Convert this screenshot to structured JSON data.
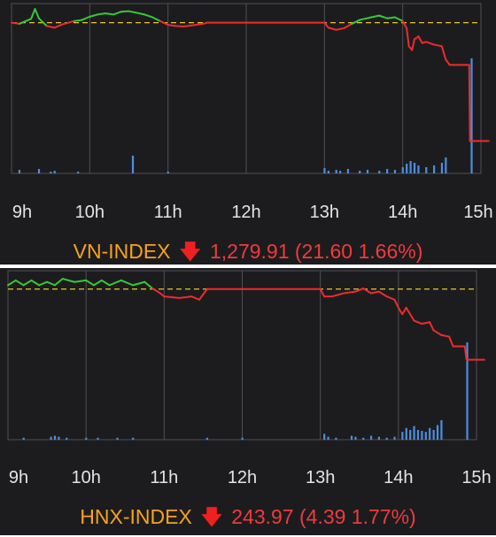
{
  "colors": {
    "background": "#1c1c1f",
    "grid": "#505055",
    "reference_line": "#e8c530",
    "up": "#37c837",
    "down": "#ef2b2b",
    "volume": "#4b8fe0",
    "index_name": "#f7a21b",
    "index_value": "#ef3b3b"
  },
  "chart_data": [
    {
      "type": "line",
      "index_name": "VN-INDEX",
      "direction_icon": "arrow-down-icon",
      "summary": "1,279.91 (21.60 1.66%)",
      "x_ticks": [
        "9h",
        "10h",
        "11h",
        "12h",
        "13h",
        "14h",
        "15h"
      ],
      "reference": 1301.51,
      "ylim": [
        1274,
        1305
      ],
      "price": [
        [
          9.0,
          1301.5
        ],
        [
          9.1,
          1301.3
        ],
        [
          9.25,
          1302.2
        ],
        [
          9.3,
          1304.0
        ],
        [
          9.35,
          1302.3
        ],
        [
          9.45,
          1300.9
        ],
        [
          9.55,
          1300.6
        ],
        [
          9.65,
          1301.2
        ],
        [
          9.8,
          1301.8
        ],
        [
          9.9,
          1302.0
        ],
        [
          10.0,
          1302.6
        ],
        [
          10.1,
          1303.0
        ],
        [
          10.2,
          1303.2
        ],
        [
          10.3,
          1303.0
        ],
        [
          10.4,
          1303.5
        ],
        [
          10.5,
          1303.6
        ],
        [
          10.6,
          1303.3
        ],
        [
          10.7,
          1303.0
        ],
        [
          10.8,
          1302.5
        ],
        [
          10.9,
          1301.8
        ],
        [
          11.0,
          1301.1
        ],
        [
          11.1,
          1300.9
        ],
        [
          11.2,
          1300.8
        ],
        [
          11.3,
          1301.0
        ],
        [
          11.45,
          1301.3
        ],
        [
          11.5,
          1301.5
        ],
        [
          12.0,
          1301.5
        ],
        [
          13.0,
          1301.5
        ],
        [
          13.05,
          1300.6
        ],
        [
          13.15,
          1300.2
        ],
        [
          13.25,
          1300.5
        ],
        [
          13.35,
          1301.3
        ],
        [
          13.45,
          1302.0
        ],
        [
          13.6,
          1302.5
        ],
        [
          13.7,
          1302.8
        ],
        [
          13.8,
          1302.3
        ],
        [
          13.9,
          1302.5
        ],
        [
          14.0,
          1301.8
        ],
        [
          14.05,
          1300.5
        ],
        [
          14.08,
          1297.2
        ],
        [
          14.12,
          1296.5
        ],
        [
          14.15,
          1298.5
        ],
        [
          14.2,
          1299.0
        ],
        [
          14.25,
          1297.8
        ],
        [
          14.3,
          1298.0
        ],
        [
          14.4,
          1297.5
        ],
        [
          14.5,
          1297.2
        ],
        [
          14.55,
          1294.8
        ],
        [
          14.6,
          1293.8
        ],
        [
          14.85,
          1293.8
        ],
        [
          14.86,
          1279.91
        ],
        [
          15.1,
          1279.91
        ]
      ],
      "volume": [
        [
          9.1,
          4
        ],
        [
          9.35,
          5
        ],
        [
          9.5,
          2
        ],
        [
          9.55,
          3
        ],
        [
          9.85,
          2
        ],
        [
          10.55,
          20
        ],
        [
          11.0,
          2
        ],
        [
          13.0,
          6
        ],
        [
          13.05,
          3
        ],
        [
          13.15,
          4
        ],
        [
          13.2,
          3
        ],
        [
          13.3,
          5
        ],
        [
          13.45,
          3
        ],
        [
          13.55,
          4
        ],
        [
          13.7,
          3
        ],
        [
          13.8,
          5
        ],
        [
          13.9,
          4
        ],
        [
          14.0,
          7
        ],
        [
          14.05,
          11
        ],
        [
          14.1,
          14
        ],
        [
          14.15,
          12
        ],
        [
          14.2,
          9
        ],
        [
          14.3,
          7
        ],
        [
          14.4,
          9
        ],
        [
          14.5,
          12
        ],
        [
          14.55,
          18
        ],
        [
          14.88,
          130
        ]
      ]
    },
    {
      "type": "line",
      "index_name": "HNX-INDEX",
      "direction_icon": "arrow-down-icon",
      "summary": "243.97 (4.39 1.77%)",
      "x_ticks": [
        "9h",
        "10h",
        "11h",
        "12h",
        "13h",
        "14h",
        "15h"
      ],
      "reference": 248.36,
      "ylim": [
        239.0,
        249.5
      ],
      "price": [
        [
          9.0,
          248.6
        ],
        [
          9.1,
          248.9
        ],
        [
          9.2,
          248.6
        ],
        [
          9.3,
          248.9
        ],
        [
          9.4,
          248.6
        ],
        [
          9.5,
          248.8
        ],
        [
          9.6,
          248.6
        ],
        [
          9.7,
          249.0
        ],
        [
          9.85,
          248.8
        ],
        [
          10.0,
          248.9
        ],
        [
          10.1,
          248.6
        ],
        [
          10.2,
          248.9
        ],
        [
          10.3,
          248.6
        ],
        [
          10.45,
          248.9
        ],
        [
          10.6,
          248.6
        ],
        [
          10.75,
          248.8
        ],
        [
          10.85,
          248.4
        ],
        [
          10.95,
          248.1
        ],
        [
          11.0,
          247.9
        ],
        [
          11.2,
          247.8
        ],
        [
          11.35,
          247.9
        ],
        [
          11.45,
          247.7
        ],
        [
          11.55,
          248.36
        ],
        [
          12.0,
          248.36
        ],
        [
          13.0,
          248.36
        ],
        [
          13.05,
          247.9
        ],
        [
          13.15,
          247.9
        ],
        [
          13.3,
          248.1
        ],
        [
          13.45,
          248.2
        ],
        [
          13.55,
          248.4
        ],
        [
          13.65,
          248.1
        ],
        [
          13.75,
          248.2
        ],
        [
          13.85,
          247.9
        ],
        [
          13.95,
          247.7
        ],
        [
          14.0,
          247.2
        ],
        [
          14.05,
          246.8
        ],
        [
          14.1,
          247.2
        ],
        [
          14.2,
          246.4
        ],
        [
          14.3,
          246.2
        ],
        [
          14.4,
          246.3
        ],
        [
          14.45,
          245.8
        ],
        [
          14.55,
          245.5
        ],
        [
          14.65,
          245.4
        ],
        [
          14.7,
          244.8
        ],
        [
          14.85,
          244.8
        ],
        [
          14.87,
          244.0
        ],
        [
          14.88,
          243.97
        ],
        [
          15.1,
          243.97
        ]
      ],
      "volume": [
        [
          9.2,
          2
        ],
        [
          9.55,
          3
        ],
        [
          9.6,
          4
        ],
        [
          9.65,
          3
        ],
        [
          9.75,
          2
        ],
        [
          10.0,
          2
        ],
        [
          10.15,
          2
        ],
        [
          10.4,
          2
        ],
        [
          10.6,
          2
        ],
        [
          11.55,
          2
        ],
        [
          12.0,
          2
        ],
        [
          13.05,
          6
        ],
        [
          13.1,
          3
        ],
        [
          13.2,
          2
        ],
        [
          13.4,
          4
        ],
        [
          13.45,
          3
        ],
        [
          13.55,
          2
        ],
        [
          13.65,
          4
        ],
        [
          13.75,
          3
        ],
        [
          13.85,
          2
        ],
        [
          13.95,
          3
        ],
        [
          14.05,
          8
        ],
        [
          14.1,
          12
        ],
        [
          14.15,
          10
        ],
        [
          14.2,
          14
        ],
        [
          14.25,
          10
        ],
        [
          14.3,
          9
        ],
        [
          14.35,
          8
        ],
        [
          14.4,
          12
        ],
        [
          14.45,
          10
        ],
        [
          14.5,
          15
        ],
        [
          14.55,
          20
        ],
        [
          14.88,
          100
        ]
      ]
    }
  ]
}
